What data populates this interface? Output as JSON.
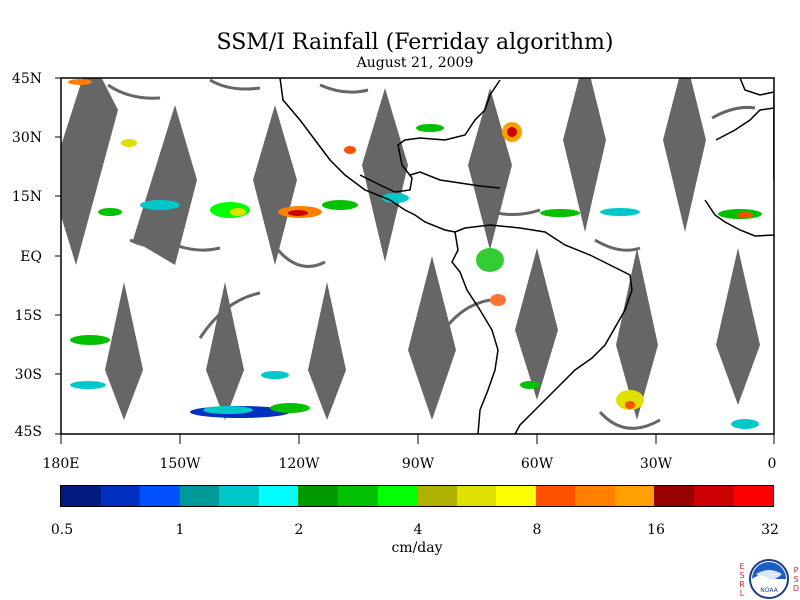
{
  "title": "SSM/I Rainfall (Ferriday algorithm)",
  "subtitle": "August 21, 2009",
  "lat_labels": [
    "45N",
    "30N",
    "15N",
    "EQ",
    "15S",
    "30S",
    "45S"
  ],
  "lon_labels": [
    "180E",
    "150W",
    "120W",
    "90W",
    "60W",
    "30W",
    "0"
  ],
  "colorbar": {
    "labels": [
      "0.5",
      "1",
      "2",
      "4",
      "8",
      "16",
      "32"
    ],
    "units": "cm/day",
    "colors": [
      "#001a80",
      "#0030c0",
      "#0050ff",
      "#009999",
      "#00c8c8",
      "#00ffff",
      "#009900",
      "#00c000",
      "#00ff00",
      "#b0b000",
      "#e0e000",
      "#ffff00",
      "#ff5000",
      "#ff8000",
      "#ffa000",
      "#990000",
      "#cc0000",
      "#ff0000"
    ]
  },
  "map_style": {
    "land_outline": "#000000",
    "swath_gap_color": "#666666",
    "background": "#ffffff"
  },
  "logo": {
    "left_letters": "ESRL",
    "right_letters": "PSD",
    "center_text": "NOAA"
  }
}
